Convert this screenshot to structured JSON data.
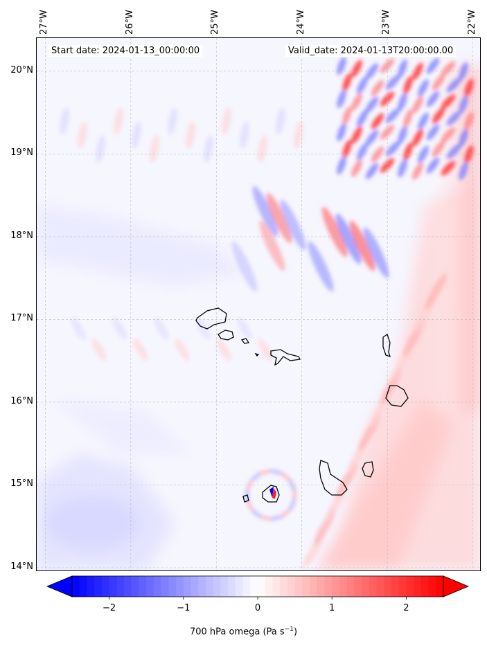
{
  "header": {
    "start_date": "Start date: 2024-01-13_00:00:00",
    "valid_date": "Valid_date: 2024-01-13T20:00:00.00"
  },
  "axes": {
    "longitudes": [
      "27°W",
      "26°W",
      "25°W",
      "24°W",
      "23°W",
      "22°W"
    ],
    "latitudes": [
      "20°N",
      "19°N",
      "18°N",
      "17°N",
      "16°N",
      "15°N",
      "14°N"
    ],
    "lon_range": [
      -27.1,
      -21.9
    ],
    "lat_range": [
      13.95,
      20.4
    ]
  },
  "colorbar": {
    "ticks": [
      "−2",
      "−1",
      "0",
      "1",
      "2"
    ],
    "tick_values": [
      -2,
      -1,
      0,
      1,
      2
    ],
    "range": [
      -2.5,
      2.5
    ],
    "label_main": "700 hPa omega (Pa s",
    "label_sup": "−1",
    "label_close": ")",
    "colormap": "bwr",
    "negative_color": "#0000ff",
    "positive_color": "#ff0000"
  },
  "colors": {
    "coastline": "#000000",
    "gridline": "#bbbbbb",
    "background": "#f7f7ff"
  }
}
